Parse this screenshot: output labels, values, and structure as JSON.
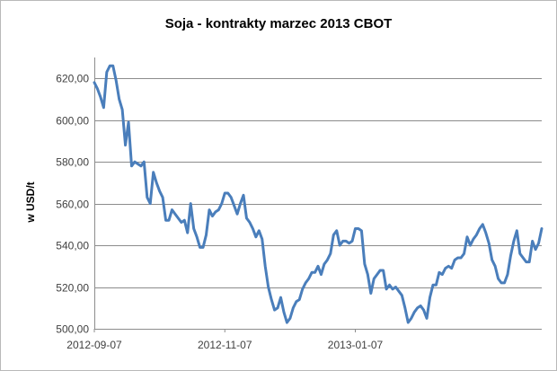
{
  "chart_data": {
    "type": "line",
    "title": "Soja - kontrakty marzec 2013 CBOT",
    "xlabel": "",
    "ylabel": "w USD/t",
    "ylim": [
      500,
      630
    ],
    "yticks": [
      500,
      520,
      540,
      560,
      580,
      600,
      620
    ],
    "ytick_labels": [
      "500,00",
      "520,00",
      "540,00",
      "560,00",
      "580,00",
      "600,00",
      "620,00"
    ],
    "xticks": [
      {
        "label": "2012-09-07",
        "index": 0
      },
      {
        "label": "2012-11-07",
        "index": 42
      },
      {
        "label": "2013-01-07",
        "index": 84
      }
    ],
    "grid": true,
    "legend": "none",
    "color": "#4a7ebb",
    "series": [
      {
        "values": [
          618,
          615,
          611,
          606,
          623,
          626,
          626,
          619,
          610,
          605,
          588,
          599,
          578,
          580,
          579,
          578,
          580,
          563,
          560,
          575,
          570,
          566,
          563,
          552,
          552,
          557,
          555,
          553,
          551,
          552,
          546,
          560,
          548,
          544,
          539,
          539,
          545,
          557,
          554,
          556,
          557,
          560,
          565,
          565,
          563,
          559,
          555,
          560,
          564,
          553,
          551,
          548,
          544,
          547,
          543,
          530,
          520,
          514,
          509,
          510,
          515,
          508,
          503,
          505,
          510,
          513,
          514,
          519,
          522,
          524,
          527,
          527,
          530,
          526,
          531,
          533,
          536,
          545,
          547,
          540,
          542,
          542,
          541,
          542,
          548,
          548,
          547,
          531,
          526,
          517,
          524,
          526,
          528,
          528,
          519,
          521,
          519,
          520,
          518,
          516,
          510,
          503,
          505,
          508,
          510,
          511,
          509,
          505,
          515,
          521,
          521,
          527,
          526,
          529,
          530,
          529,
          533,
          534,
          534,
          536,
          544,
          540,
          543,
          545,
          548,
          550,
          546,
          541,
          533,
          530,
          524,
          522,
          522,
          526,
          535,
          542,
          547,
          536,
          534,
          532,
          532,
          542,
          538,
          541,
          548
        ]
      }
    ]
  }
}
